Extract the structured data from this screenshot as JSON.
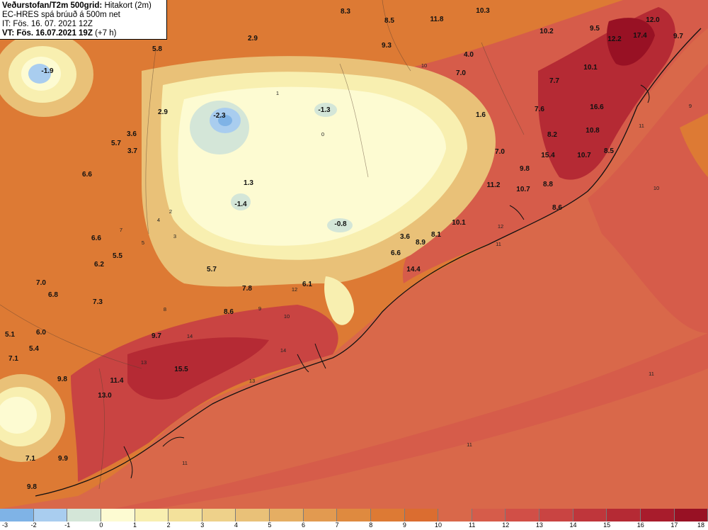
{
  "header": {
    "line1_bold": "Veðurstofan/T2m 500grid:",
    "line1_rest": "Hitakort (2m)",
    "line2": "EC-HRES spá brúuð á 500m net",
    "line3": "IT: Fös. 16. 07. 2021 12Z",
    "line4_bold": "VT: Fös. 16.07.2021 19Z",
    "line4_rest": "(+7 h)"
  },
  "legend": {
    "ticks": [
      "-3",
      "-2",
      "-1",
      "0",
      "1",
      "2",
      "3",
      "4",
      "5",
      "6",
      "7",
      "8",
      "9",
      "10",
      "11",
      "12",
      "13",
      "14",
      "15",
      "16",
      "17",
      "18"
    ],
    "colors": [
      "#7fb3e6",
      "#a9cdef",
      "#d4e6d8",
      "#fdfbd2",
      "#f8efb0",
      "#f3e19b",
      "#eed18a",
      "#e9c178",
      "#e5ae63",
      "#e29a50",
      "#df8a3f",
      "#dd7a34",
      "#db6d30",
      "#d9684a",
      "#d65c4a",
      "#d14f47",
      "#c94442",
      "#bf363b",
      "#b52a34",
      "#a81c2c",
      "#981124"
    ]
  },
  "markers": [
    {
      "id": "m1",
      "label": "-1.9"
    },
    {
      "id": "m2",
      "label": "5.8"
    },
    {
      "id": "m3",
      "label": "2.9"
    },
    {
      "id": "m4",
      "label": "2.9"
    },
    {
      "id": "m5",
      "label": "-2.3"
    },
    {
      "id": "m6",
      "label": "-1.3"
    },
    {
      "id": "m7",
      "label": "8.3"
    },
    {
      "id": "m8",
      "label": "8.5"
    },
    {
      "id": "m9",
      "label": "9.3"
    },
    {
      "id": "m10",
      "label": "11.8"
    },
    {
      "id": "m11",
      "label": "10.3"
    },
    {
      "id": "m12",
      "label": "10.2"
    },
    {
      "id": "m13",
      "label": "9.5"
    },
    {
      "id": "m14",
      "label": "12.2"
    },
    {
      "id": "m15",
      "label": "17.4"
    },
    {
      "id": "m16",
      "label": "12.0"
    },
    {
      "id": "m17",
      "label": "9.7"
    },
    {
      "id": "m18",
      "label": "4.0"
    },
    {
      "id": "m19",
      "label": "7.0"
    },
    {
      "id": "m20",
      "label": "10.1"
    },
    {
      "id": "m21",
      "label": "7.7"
    },
    {
      "id": "m22",
      "label": "1.6"
    },
    {
      "id": "m23",
      "label": "7.6"
    },
    {
      "id": "m24",
      "label": "16.6"
    },
    {
      "id": "m25",
      "label": "10.8"
    },
    {
      "id": "m26",
      "label": "8.2"
    },
    {
      "id": "m27",
      "label": "7.0"
    },
    {
      "id": "m28",
      "label": "15.4"
    },
    {
      "id": "m29",
      "label": "10.7"
    },
    {
      "id": "m30",
      "label": "8.5"
    },
    {
      "id": "m31",
      "label": "9.8"
    },
    {
      "id": "m32",
      "label": "11.2"
    },
    {
      "id": "m33",
      "label": "10.7"
    },
    {
      "id": "m34",
      "label": "8.8"
    },
    {
      "id": "m35",
      "label": "8.6"
    },
    {
      "id": "m36",
      "label": "3.6"
    },
    {
      "id": "m37",
      "label": "3.7"
    },
    {
      "id": "m38",
      "label": "5.7"
    },
    {
      "id": "m39",
      "label": "6.6"
    },
    {
      "id": "m40",
      "label": "1.3"
    },
    {
      "id": "m41",
      "label": "-1.4"
    },
    {
      "id": "m42",
      "label": "-0.8"
    },
    {
      "id": "m43",
      "label": "10.1"
    },
    {
      "id": "m44",
      "label": "8.1"
    },
    {
      "id": "m45",
      "label": "3.6"
    },
    {
      "id": "m46",
      "label": "8.9"
    },
    {
      "id": "m47",
      "label": "6.6"
    },
    {
      "id": "m48",
      "label": "6.6"
    },
    {
      "id": "m49",
      "label": "5.5"
    },
    {
      "id": "m50",
      "label": "6.2"
    },
    {
      "id": "m51",
      "label": "14.4"
    },
    {
      "id": "m52",
      "label": "5.7"
    },
    {
      "id": "m53",
      "label": "7.0"
    },
    {
      "id": "m54",
      "label": "6.8"
    },
    {
      "id": "m55",
      "label": "7.8"
    },
    {
      "id": "m56",
      "label": "6.1"
    },
    {
      "id": "m57",
      "label": "7.3"
    },
    {
      "id": "m58",
      "label": "8.6"
    },
    {
      "id": "m59",
      "label": "5.1"
    },
    {
      "id": "m60",
      "label": "6.0"
    },
    {
      "id": "m61",
      "label": "5.4"
    },
    {
      "id": "m62",
      "label": "9.7"
    },
    {
      "id": "m63",
      "label": "7.1"
    },
    {
      "id": "m64",
      "label": "15.5"
    },
    {
      "id": "m65",
      "label": "9.8"
    },
    {
      "id": "m66",
      "label": "11.4"
    },
    {
      "id": "m67",
      "label": "13.0"
    },
    {
      "id": "m68",
      "label": "7.1"
    },
    {
      "id": "m69",
      "label": "9.9"
    },
    {
      "id": "m70",
      "label": "9.8"
    }
  ],
  "contour_labels": [
    {
      "id": "c1",
      "label": "0"
    },
    {
      "id": "c2",
      "label": "1"
    },
    {
      "id": "c3",
      "label": "2"
    },
    {
      "id": "c4",
      "label": "3"
    },
    {
      "id": "c5",
      "label": "4"
    },
    {
      "id": "c6",
      "label": "5"
    },
    {
      "id": "c7",
      "label": "7"
    },
    {
      "id": "c8",
      "label": "8"
    },
    {
      "id": "c9",
      "label": "9"
    },
    {
      "id": "c10",
      "label": "10"
    },
    {
      "id": "c11",
      "label": "11"
    },
    {
      "id": "c12",
      "label": "12"
    },
    {
      "id": "c13",
      "label": "13"
    },
    {
      "id": "c14",
      "label": "14"
    },
    {
      "id": "c15",
      "label": "11"
    },
    {
      "id": "c16",
      "label": "11"
    },
    {
      "id": "c17",
      "label": "10"
    },
    {
      "id": "c18",
      "label": "9"
    },
    {
      "id": "c19",
      "label": "11"
    },
    {
      "id": "c20",
      "label": "12"
    },
    {
      "id": "c21",
      "label": "13"
    },
    {
      "id": "c22",
      "label": "14"
    },
    {
      "id": "c23",
      "label": "10"
    },
    {
      "id": "c24",
      "label": "11"
    }
  ]
}
